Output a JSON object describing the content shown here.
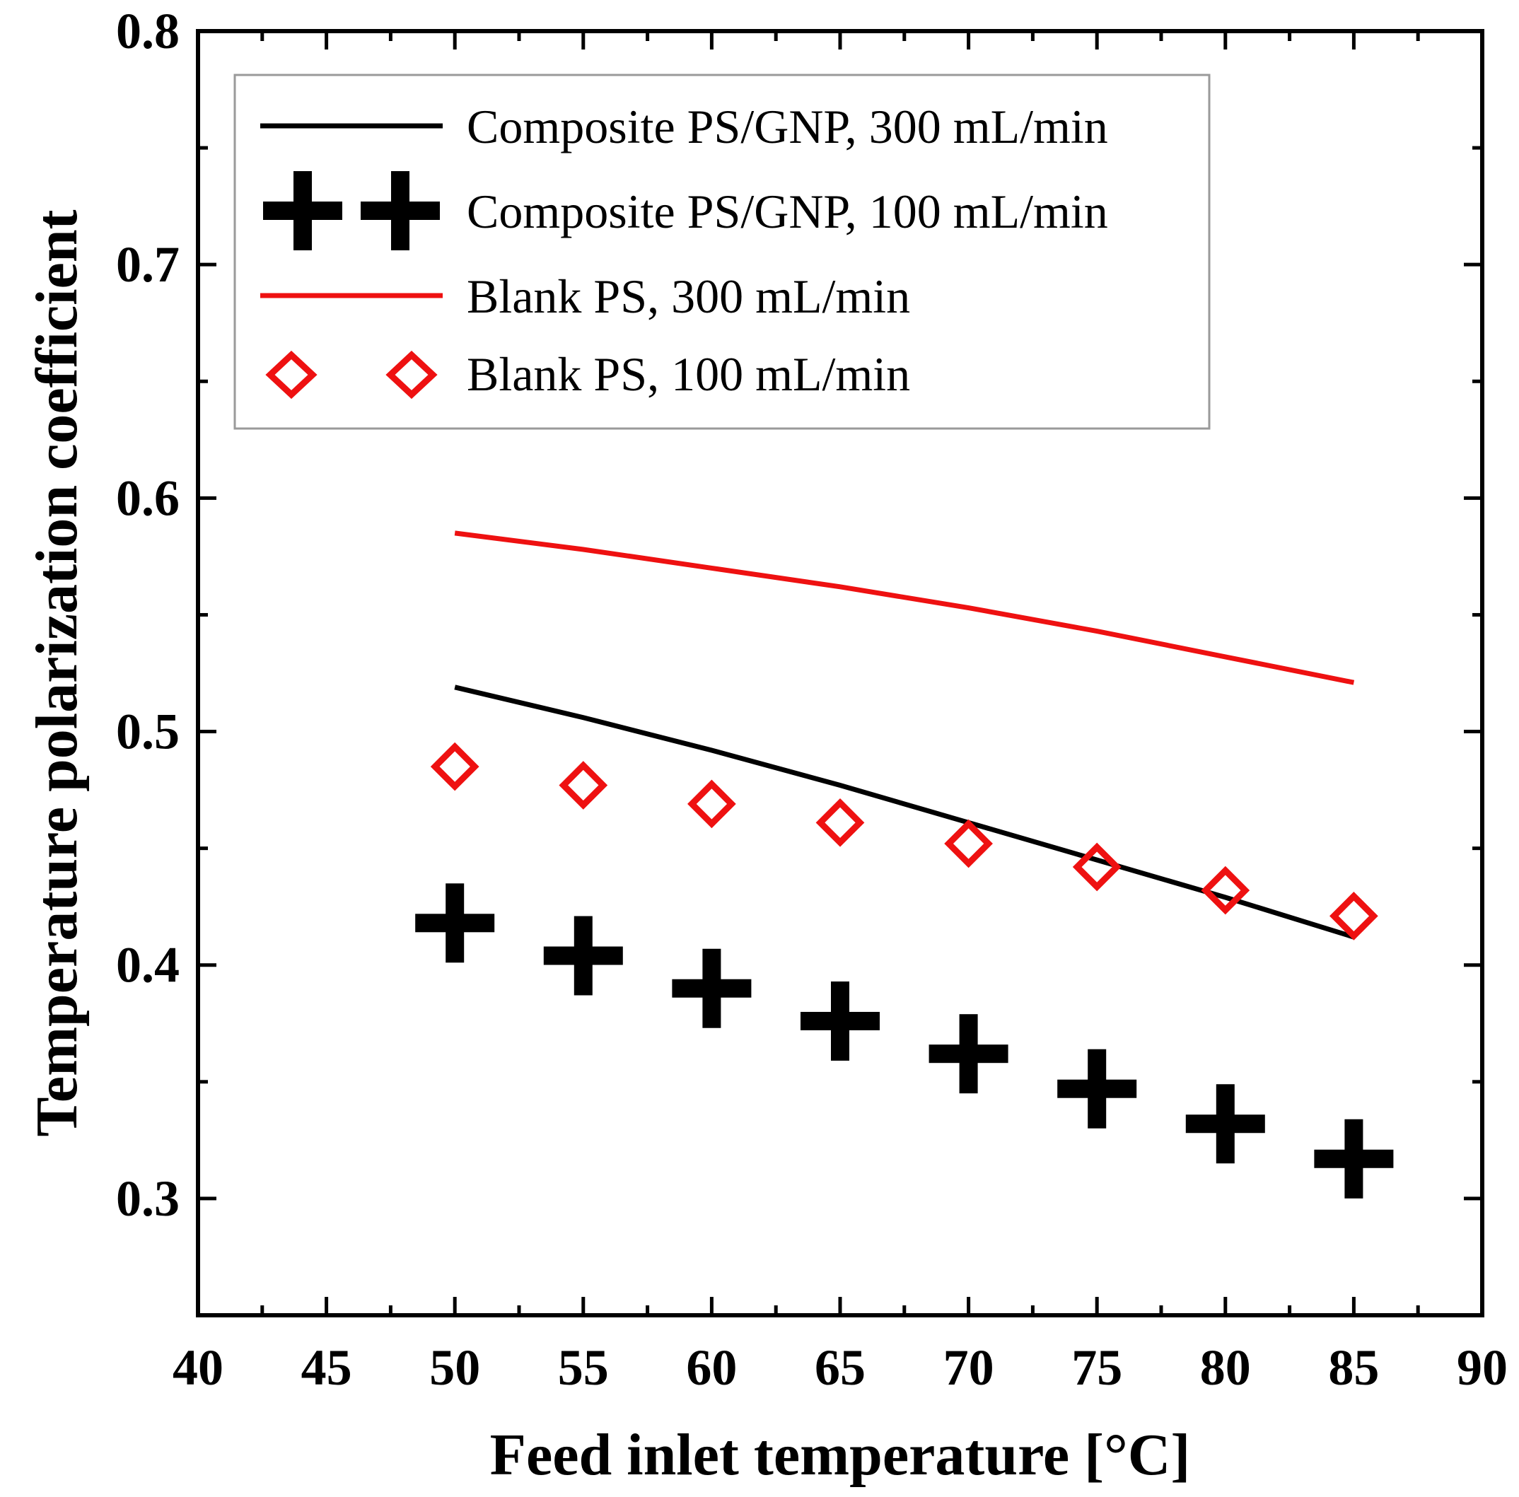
{
  "chart_data": {
    "type": "line",
    "title": "",
    "xlabel": "Feed inlet temperature [°C]",
    "ylabel": "Temperature polarization coefficient",
    "xlim": [
      40,
      90
    ],
    "ylim": [
      0.25,
      0.8
    ],
    "x_major_ticks": [
      40,
      45,
      50,
      55,
      60,
      65,
      70,
      75,
      80,
      85,
      90
    ],
    "x_tick_labels": [
      "40",
      "45",
      "50",
      "55",
      "60",
      "65",
      "70",
      "75",
      "80",
      "85",
      "90"
    ],
    "y_major_ticks": [
      0.3,
      0.4,
      0.5,
      0.6,
      0.7,
      0.8
    ],
    "y_tick_labels": [
      "0.3",
      "0.4",
      "0.5",
      "0.6",
      "0.7",
      "0.8"
    ],
    "grid": false,
    "legend_position": "top-left",
    "x": [
      50,
      55,
      60,
      65,
      70,
      75,
      80,
      85
    ],
    "series": [
      {
        "name": "Composite PS/GNP, 300 mL/min",
        "style": "line",
        "color": "#000000",
        "values": [
          0.519,
          0.506,
          0.492,
          0.477,
          0.461,
          0.445,
          0.429,
          0.412
        ]
      },
      {
        "name": "Composite PS/GNP, 100 mL/min",
        "style": "cross-marker",
        "color": "#000000",
        "values": [
          0.418,
          0.404,
          0.39,
          0.376,
          0.362,
          0.347,
          0.332,
          0.317
        ]
      },
      {
        "name": "Blank PS, 300 mL/min",
        "style": "line",
        "color": "#ee1111",
        "values": [
          0.585,
          0.578,
          0.57,
          0.562,
          0.553,
          0.543,
          0.532,
          0.521
        ]
      },
      {
        "name": "Blank PS, 100 mL/min",
        "style": "diamond-marker",
        "color": "#ee1111",
        "values": [
          0.485,
          0.477,
          0.469,
          0.461,
          0.452,
          0.442,
          0.432,
          0.421
        ]
      }
    ]
  }
}
